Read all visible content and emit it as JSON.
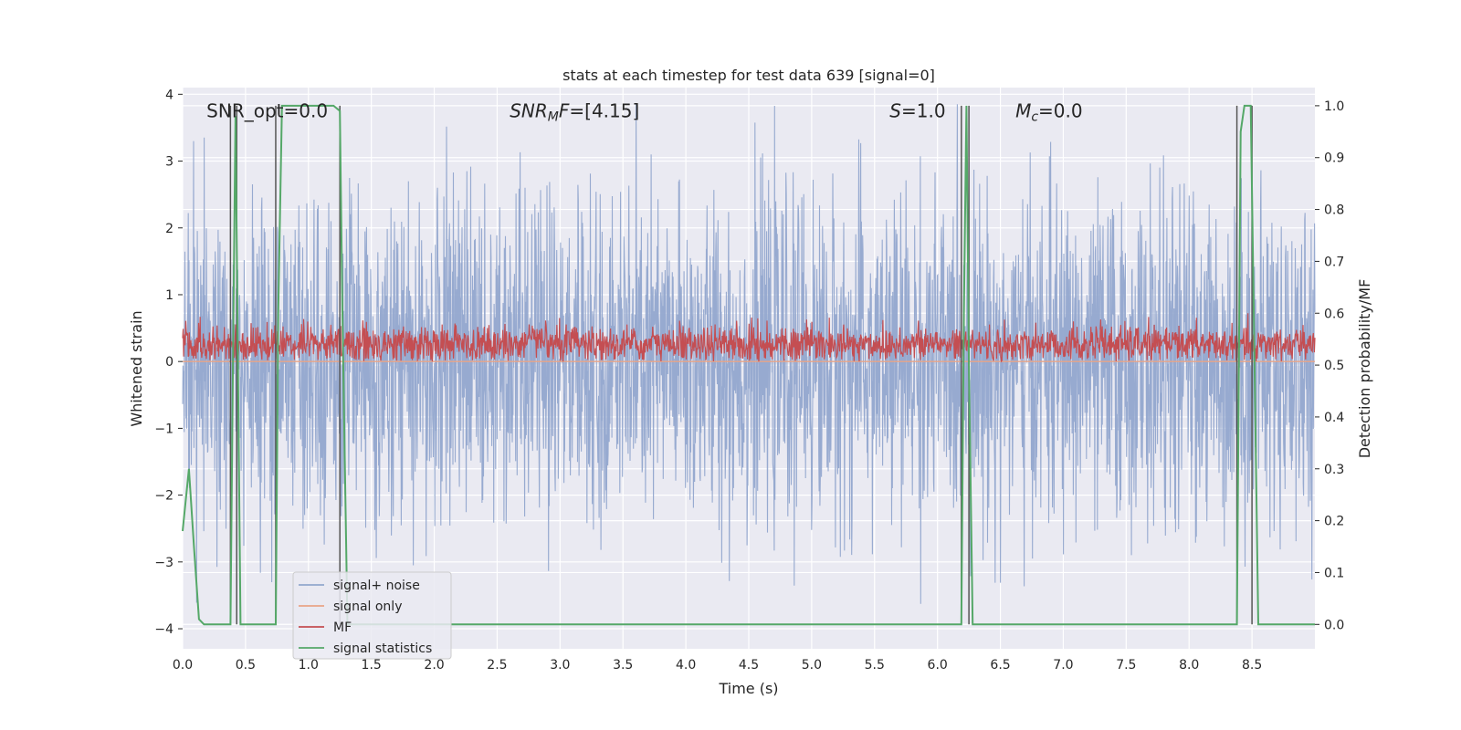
{
  "chart_data": {
    "type": "line",
    "title": "stats at each timestep for test data 639 [signal=0]",
    "xlabel": "Time (s)",
    "ylabel": "Whitened strain",
    "ylabel_right": "Detection probability/MF",
    "xlim": [
      0,
      9
    ],
    "ylim": [
      -4.3,
      4.1
    ],
    "ylim_right": [
      -0.047,
      1.035
    ],
    "xticks": [
      0.0,
      0.5,
      1.0,
      1.5,
      2.0,
      2.5,
      3.0,
      3.5,
      4.0,
      4.5,
      5.0,
      5.5,
      6.0,
      6.5,
      7.0,
      7.5,
      8.0,
      8.5
    ],
    "yticks": [
      4,
      3,
      2,
      1,
      0,
      -1,
      -2,
      -3,
      -4
    ],
    "yticks_right": [
      1.0,
      0.9,
      0.8,
      0.7,
      0.6,
      0.5,
      0.4,
      0.3,
      0.2,
      0.1,
      0.0
    ],
    "grid": true,
    "legend_position": "lower-left",
    "annotations": [
      {
        "text": "SNR_opt=0.0",
        "x": 0.19,
        "y": 3.75
      },
      {
        "text": "SNR_MF=[4.15]",
        "x": 2.6,
        "y": 3.75
      },
      {
        "text": "S=1.0",
        "x": 5.62,
        "y": 3.75
      },
      {
        "text": "M_c=0.0",
        "x": 6.62,
        "y": 3.75
      }
    ],
    "series": [
      {
        "name": "signal+ noise",
        "color": "#92a7ce",
        "axis": "left",
        "note": "dense noise, approx. mean 0, std 1.2, peaks up to ~3.8 / ~-3.6"
      },
      {
        "name": "signal only",
        "color": "#e9a487",
        "axis": "left",
        "x": [
          0,
          9
        ],
        "y": [
          0,
          0
        ]
      },
      {
        "name": "MF",
        "color": "#c44e52",
        "axis": "left",
        "note": "dense trace around 0.25, range ~0.0 to ~0.9"
      },
      {
        "name": "signal statistics",
        "color": "#55a868",
        "axis": "right",
        "x": [
          0.0,
          0.05,
          0.09,
          0.13,
          0.17,
          0.22,
          0.38,
          0.4,
          0.42,
          0.44,
          0.46,
          0.49,
          0.74,
          0.76,
          0.79,
          1.2,
          1.25,
          1.27,
          1.31,
          6.19,
          6.21,
          6.23,
          6.25,
          6.28,
          6.31,
          8.38,
          8.41,
          8.44,
          8.49,
          8.52,
          8.55,
          9.0
        ],
        "y": [
          0.18,
          0.3,
          0.15,
          0.01,
          0.0,
          0.0,
          0.0,
          0.5,
          0.98,
          0.5,
          0.0,
          0.0,
          0.0,
          0.6,
          1.0,
          1.0,
          0.99,
          0.6,
          0.0,
          0.0,
          0.6,
          1.0,
          0.5,
          0.0,
          0.0,
          0.0,
          0.95,
          1.0,
          1.0,
          0.5,
          0.0,
          0.0
        ]
      }
    ],
    "vertical_lines": [
      0.38,
      0.43,
      0.74,
      1.25,
      6.19,
      6.25,
      8.38,
      8.5
    ],
    "vline_color": "#555555"
  }
}
